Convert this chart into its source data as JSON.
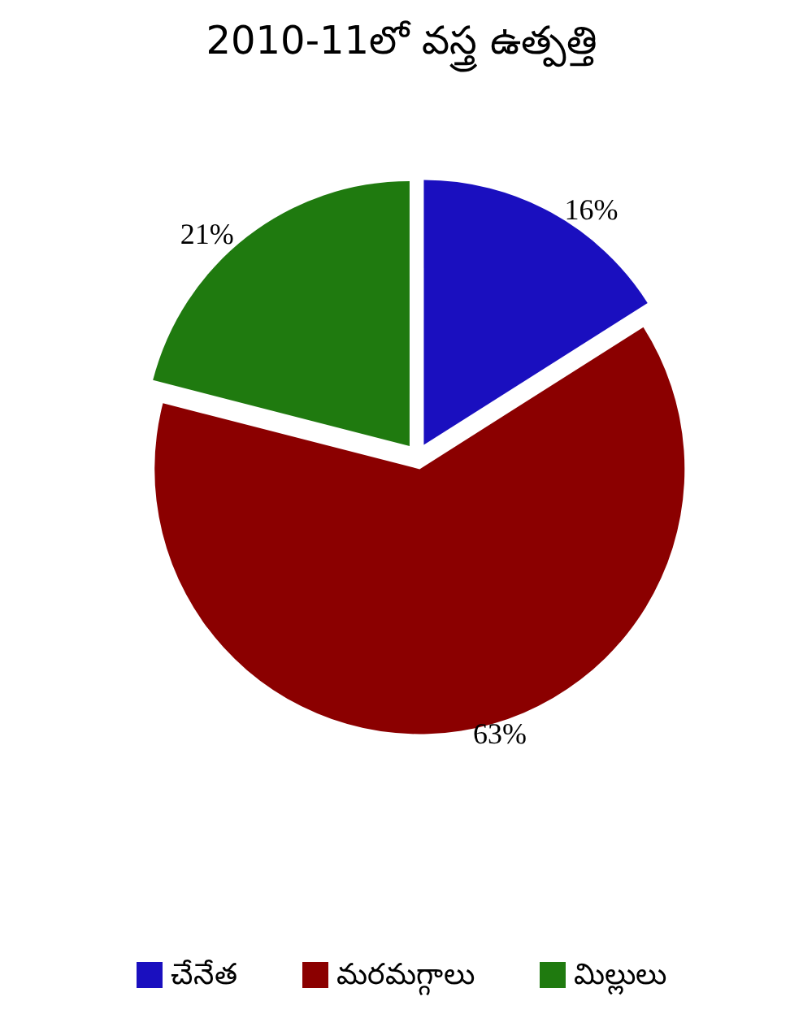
{
  "chart_data": {
    "type": "pie",
    "title": "2010-11లో వస్త్ర ఉత్పత్తి",
    "categories": [
      "చేనేత",
      "మరమగ్గాలు",
      "మిల్లులు"
    ],
    "values": [
      16,
      63,
      21
    ],
    "value_labels": [
      "16%",
      "63%",
      "21%"
    ],
    "colors": [
      "#1a0fbf",
      "#8b0000",
      "#1f7a0f"
    ],
    "legend": "bottom"
  }
}
